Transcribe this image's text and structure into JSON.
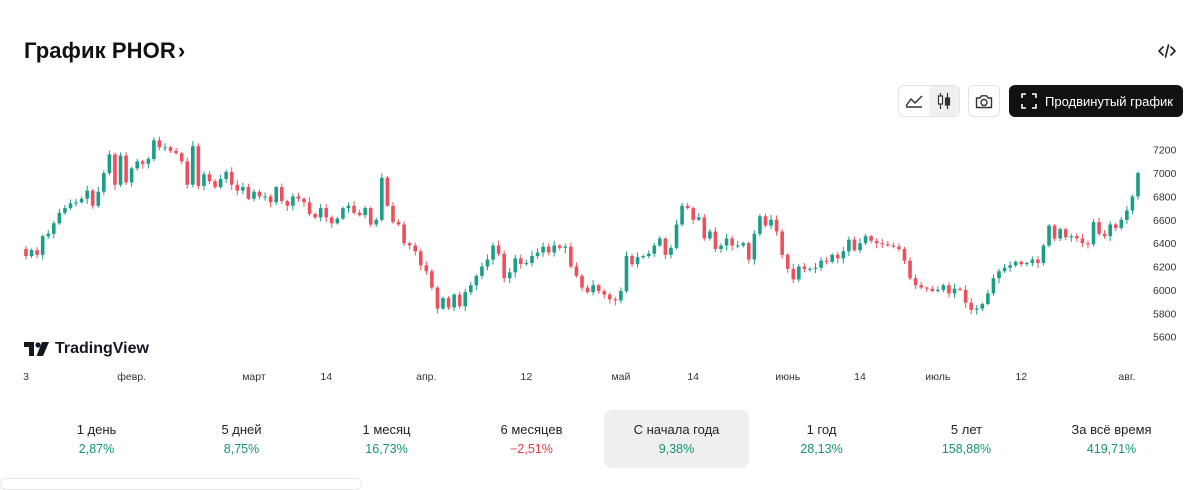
{
  "header": {
    "title": "График PHOR",
    "chevron": "›"
  },
  "toolbar": {
    "embed_icon": "code-icon",
    "area_icon": "area-chart-icon",
    "candles_icon": "candlestick-icon",
    "screenshot_icon": "camera-icon",
    "advanced_label": "Продвинутый график",
    "advanced_icon": "fullscreen-icon"
  },
  "watermark": {
    "text": "TradingView"
  },
  "colors": {
    "up": "#1a9e86",
    "down": "#ef4f5c",
    "positive_text": "#15917a",
    "negative_text": "#e03a45"
  },
  "chart_data": {
    "type": "candlestick",
    "title": "",
    "ylim": [
      5400,
      7300
    ],
    "y_ticks": [
      5600,
      5800,
      6000,
      6200,
      6400,
      6600,
      6800,
      7000,
      7200
    ],
    "y_tick_labels": [
      "5600",
      "5800",
      "6000",
      "6200",
      "6400",
      "6600",
      "6800",
      "7000",
      "7200"
    ],
    "x_tick_labels": [
      "3",
      "февр.",
      "март",
      "14",
      "апр.",
      "12",
      "май",
      "14",
      "июнь",
      "14",
      "июль",
      "12",
      "авг."
    ],
    "x_tick_index": [
      0,
      19,
      41,
      54,
      72,
      90,
      107,
      120,
      137,
      150,
      164,
      179,
      198
    ],
    "closes": [
      6290,
      6340,
      6300,
      6460,
      6480,
      6570,
      6660,
      6700,
      6740,
      6750,
      6780,
      6850,
      6720,
      6840,
      7000,
      7160,
      6900,
      7150,
      6920,
      7040,
      7100,
      7080,
      7120,
      7280,
      7220,
      7220,
      7190,
      7170,
      7100,
      6900,
      7230,
      6890,
      6990,
      6930,
      6880,
      6950,
      7010,
      6900,
      6850,
      6880,
      6780,
      6840,
      6800,
      6800,
      6750,
      6880,
      6760,
      6720,
      6800,
      6780,
      6750,
      6650,
      6620,
      6700,
      6620,
      6570,
      6610,
      6700,
      6720,
      6660,
      6640,
      6700,
      6560,
      6600,
      6960,
      6720,
      6580,
      6560,
      6400,
      6380,
      6330,
      6210,
      6160,
      6020,
      5840,
      5930,
      5850,
      5960,
      5860,
      5980,
      6040,
      6120,
      6200,
      6260,
      6380,
      6310,
      6100,
      6150,
      6270,
      6220,
      6230,
      6290,
      6320,
      6370,
      6320,
      6380,
      6360,
      6370,
      6200,
      6120,
      6020,
      5980,
      6040,
      5990,
      5960,
      5920,
      5910,
      5990,
      6290,
      6220,
      6280,
      6290,
      6310,
      6380,
      6440,
      6300,
      6360,
      6560,
      6720,
      6700,
      6600,
      6620,
      6440,
      6500,
      6350,
      6380,
      6440,
      6380,
      6380,
      6400,
      6260,
      6480,
      6630,
      6550,
      6600,
      6500,
      6300,
      6180,
      6090,
      6200,
      6180,
      6180,
      6190,
      6250,
      6240,
      6300,
      6270,
      6330,
      6430,
      6340,
      6400,
      6460,
      6420,
      6400,
      6390,
      6380,
      6370,
      6350,
      6250,
      6100,
      6040,
      6020,
      6010,
      5990,
      6000,
      6040,
      5970,
      6010,
      6000,
      5890,
      5830,
      5840,
      5880,
      5970,
      6100,
      6160,
      6190,
      6210,
      6240,
      6220,
      6230,
      6260,
      6230,
      6380,
      6550,
      6440,
      6520,
      6450,
      6460,
      6440,
      6400,
      6390,
      6580,
      6480,
      6460,
      6560,
      6530,
      6600,
      6680,
      6800,
      7000
    ]
  },
  "periods": [
    {
      "label": "1 день",
      "value": "2,87%",
      "sign": "pos",
      "active": false
    },
    {
      "label": "5 дней",
      "value": "8,75%",
      "sign": "pos",
      "active": false
    },
    {
      "label": "1 месяц",
      "value": "16,73%",
      "sign": "pos",
      "active": false
    },
    {
      "label": "6 месяцев",
      "value": "−2,51%",
      "sign": "neg",
      "active": false
    },
    {
      "label": "С начала года",
      "value": "9,38%",
      "sign": "pos",
      "active": true
    },
    {
      "label": "1 год",
      "value": "28,13%",
      "sign": "pos",
      "active": false
    },
    {
      "label": "5 лет",
      "value": "158,88%",
      "sign": "pos",
      "active": false
    },
    {
      "label": "За всё время",
      "value": "419,71%",
      "sign": "pos",
      "active": false
    }
  ]
}
